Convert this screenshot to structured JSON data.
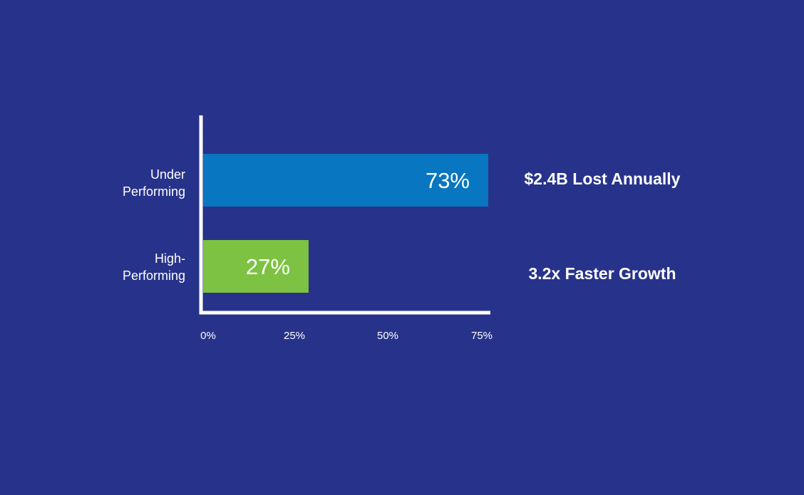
{
  "chart_data": {
    "type": "bar",
    "orientation": "horizontal",
    "categories": [
      [
        "Under",
        "Performing"
      ],
      [
        "High-",
        "Performing"
      ]
    ],
    "values": [
      73,
      27
    ],
    "value_labels": [
      "73%",
      "27%"
    ],
    "colors": [
      "#0876C0",
      "#7DC242"
    ],
    "x_ticks": [
      "0%",
      "25%",
      "50%",
      "75%"
    ],
    "xlim": [
      0,
      75
    ],
    "annotations": [
      "$2.4B Lost Annually",
      "3.2x Faster Growth"
    ],
    "background": "#27338A",
    "axis_color": "#FFFFFF",
    "grid": false
  }
}
